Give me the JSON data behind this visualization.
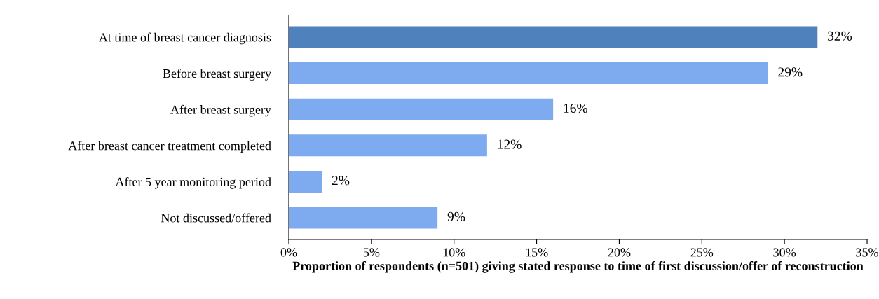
{
  "chart_data": {
    "type": "bar",
    "orientation": "horizontal",
    "categories": [
      "At time of breast cancer diagnosis",
      "Before breast surgery",
      "After breast surgery",
      "After breast cancer treatment completed",
      "After 5 year monitoring period",
      "Not discussed/offered"
    ],
    "values": [
      32,
      29,
      16,
      12,
      2,
      9
    ],
    "value_labels": [
      "32%",
      "29%",
      "16%",
      "12%",
      "2%",
      "9%"
    ],
    "colors": [
      "#4f81bd",
      "#7eaaf0",
      "#7eaaf0",
      "#7eaaf0",
      "#7eaaf0",
      "#7eaaf0"
    ],
    "xlim": [
      0,
      35
    ],
    "xticks": [
      {
        "value": 0,
        "label": "0%"
      },
      {
        "value": 5,
        "label": "5%"
      },
      {
        "value": 10,
        "label": "10%"
      },
      {
        "value": 15,
        "label": "15%"
      },
      {
        "value": 20,
        "label": "20%"
      },
      {
        "value": 25,
        "label": "25%"
      },
      {
        "value": 30,
        "label": "30%"
      },
      {
        "value": 35,
        "label": "35%"
      }
    ],
    "xlabel": "Proportion of respondents (n=501) giving stated response to time of first discussion/offer of reconstruction",
    "grid": false,
    "legend": false
  }
}
